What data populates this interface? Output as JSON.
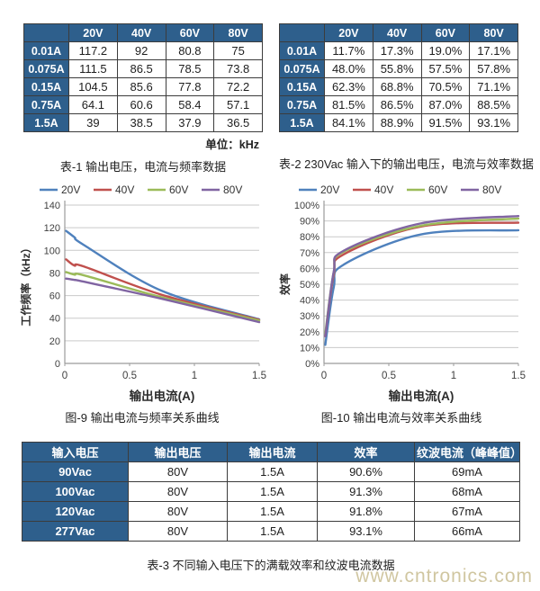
{
  "page": {
    "watermark": "www.cntronics.com",
    "watermark_color": "#CEC39B",
    "background": "#ffffff"
  },
  "colors": {
    "table_header_bg": "#2E5F8C",
    "table_border": "#3c3c3c",
    "grid_line": "#c9c9c9",
    "axis_line": "#9b9b9b"
  },
  "table1": {
    "caption": "表-1 输出电压，电流与频率数据",
    "unit_note": "单位：kHz",
    "col_headers": [
      "20V",
      "40V",
      "60V",
      "80V"
    ],
    "rows": [
      {
        "label": "0.01A",
        "values": [
          "117.2",
          "92",
          "80.8",
          "75"
        ]
      },
      {
        "label": "0.075A",
        "values": [
          "111.5",
          "86.5",
          "78.5",
          "73.8"
        ]
      },
      {
        "label": "0.15A",
        "values": [
          "104.5",
          "85.6",
          "77.8",
          "72.2"
        ]
      },
      {
        "label": "0.75A",
        "values": [
          "64.1",
          "60.6",
          "58.4",
          "57.1"
        ]
      },
      {
        "label": "1.5A",
        "values": [
          "39",
          "38.5",
          "37.9",
          "36.5"
        ]
      }
    ]
  },
  "table2": {
    "caption": "表-2  230Vac 输入下的输出电压，电流与效率数据",
    "col_headers": [
      "20V",
      "40V",
      "60V",
      "80V"
    ],
    "rows": [
      {
        "label": "0.01A",
        "values": [
          "11.7%",
          "17.3%",
          "19.0%",
          "17.1%"
        ]
      },
      {
        "label": "0.075A",
        "values": [
          "48.0%",
          "55.8%",
          "57.5%",
          "57.8%"
        ]
      },
      {
        "label": "0.15A",
        "values": [
          "62.3%",
          "68.8%",
          "70.5%",
          "71.1%"
        ]
      },
      {
        "label": "0.75A",
        "values": [
          "81.5%",
          "86.5%",
          "87.0%",
          "88.5%"
        ]
      },
      {
        "label": "1.5A",
        "values": [
          "84.1%",
          "88.9%",
          "91.5%",
          "93.1%"
        ]
      }
    ]
  },
  "chart_data": [
    {
      "type": "line",
      "title": "图-9  输出电流与频率关系曲线",
      "xlabel": "输出电流(A)",
      "ylabel": "工作频率（kHz）",
      "x": [
        0.01,
        0.075,
        0.15,
        0.75,
        1.5
      ],
      "xlim": [
        0,
        1.5
      ],
      "xticks": [
        0,
        0.5,
        1,
        1.5
      ],
      "ylim": [
        0,
        140
      ],
      "yticks": [
        0,
        20,
        40,
        60,
        80,
        100,
        120,
        140
      ],
      "ytick_suffix": "",
      "grid": true,
      "legend_position": "top",
      "series": [
        {
          "name": "20V",
          "color": "#4F81BD",
          "values": [
            117.2,
            111.5,
            104.5,
            64.1,
            39
          ]
        },
        {
          "name": "40V",
          "color": "#C0504D",
          "values": [
            92,
            86.5,
            85.6,
            60.6,
            38.5
          ]
        },
        {
          "name": "60V",
          "color": "#9BBB59",
          "values": [
            80.8,
            78.5,
            77.8,
            58.4,
            37.9
          ]
        },
        {
          "name": "80V",
          "color": "#8064A2",
          "values": [
            75,
            73.8,
            72.2,
            57.1,
            36.5
          ]
        }
      ]
    },
    {
      "type": "line",
      "title": "图-10 输出电流与效率关系曲线",
      "xlabel": "输出电流(A)",
      "ylabel": "效率",
      "x": [
        0.01,
        0.075,
        0.15,
        0.75,
        1.5
      ],
      "xlim": [
        0,
        1.5
      ],
      "xticks": [
        0,
        0.5,
        1,
        1.5
      ],
      "ylim": [
        0,
        100
      ],
      "yticks": [
        0,
        10,
        20,
        30,
        40,
        50,
        60,
        70,
        80,
        90,
        100
      ],
      "ytick_suffix": "%",
      "grid": true,
      "legend_position": "top",
      "series": [
        {
          "name": "20V",
          "color": "#4F81BD",
          "values": [
            11.7,
            48.0,
            62.3,
            81.5,
            84.1
          ]
        },
        {
          "name": "40V",
          "color": "#C0504D",
          "values": [
            17.3,
            55.8,
            68.8,
            86.5,
            88.9
          ]
        },
        {
          "name": "60V",
          "color": "#9BBB59",
          "values": [
            19.0,
            57.5,
            70.5,
            87.0,
            91.5
          ]
        },
        {
          "name": "80V",
          "color": "#8064A2",
          "values": [
            17.1,
            57.8,
            71.1,
            88.5,
            93.1
          ]
        }
      ]
    }
  ],
  "table3": {
    "caption": "表-3 不同输入电压下的满载效率和纹波电流数据",
    "headers": [
      "输入电压",
      "输出电压",
      "输出电流",
      "效率",
      "纹波电流（峰峰值）"
    ],
    "rows": [
      {
        "label": "90Vac",
        "values": [
          "80V",
          "1.5A",
          "90.6%",
          "69mA"
        ]
      },
      {
        "label": "100Vac",
        "values": [
          "80V",
          "1.5A",
          "91.3%",
          "68mA"
        ]
      },
      {
        "label": "120Vac",
        "values": [
          "80V",
          "1.5A",
          "91.8%",
          "67mA"
        ]
      },
      {
        "label": "277Vac",
        "values": [
          "80V",
          "1.5A",
          "93.1%",
          "66mA"
        ]
      }
    ]
  }
}
